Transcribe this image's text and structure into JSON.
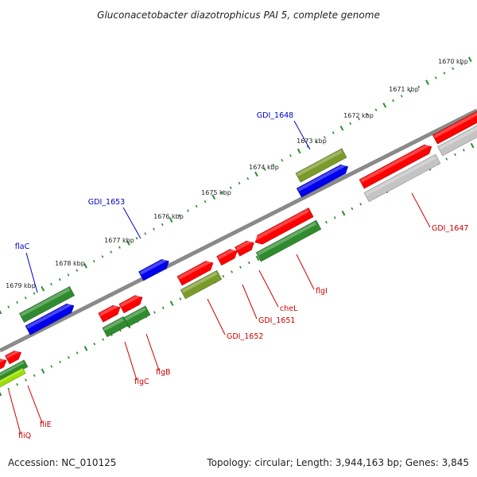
{
  "title": "Gluconacetobacter diazotrophicus PAI 5, complete genome",
  "footer": {
    "accession": "Accession: NC_010125",
    "stats": "Topology: circular; Length: 3,944,163 bp; Genes: 3,845"
  },
  "colors": {
    "backbone": "#8a8a8a",
    "tick": "#2e8b2e",
    "red": "#ff0000",
    "green": "#2e8b2e",
    "blue": "#0000ee",
    "olive": "#7a9a2a",
    "gray": "#c4c4c4",
    "lime": "#9be000",
    "label_blue": "#0000cc",
    "label_red": "#cc0000"
  },
  "kbp_ticks": [
    "1670 kbp",
    "1671 kbp",
    "1672 kbp",
    "1673 kbp",
    "1674 kbp",
    "1675 kbp",
    "1676 kbp",
    "1677 kbp",
    "1678 kbp",
    "1679 kbp"
  ],
  "gene_labels": [
    {
      "text": "GDI_1648",
      "color": "blue"
    },
    {
      "text": "GDI_1653",
      "color": "blue"
    },
    {
      "text": "flaC",
      "color": "blue"
    },
    {
      "text": "GDI_1647",
      "color": "red"
    },
    {
      "text": "flgI",
      "color": "red"
    },
    {
      "text": "cheL",
      "color": "red"
    },
    {
      "text": "GDI_1651",
      "color": "red"
    },
    {
      "text": "GDI_1652",
      "color": "red"
    },
    {
      "text": "flgB",
      "color": "red"
    },
    {
      "text": "flgC",
      "color": "red"
    },
    {
      "text": "fliE",
      "color": "red"
    },
    {
      "text": "fliQ",
      "color": "red"
    }
  ],
  "features": [
    {
      "track": "fwd-inner",
      "color": "red",
      "strand": "+"
    },
    {
      "track": "fwd-inner",
      "color": "red",
      "strand": "+"
    },
    {
      "track": "fwd-inner",
      "color": "red",
      "strand": "-"
    },
    {
      "track": "fwd-inner",
      "color": "red",
      "strand": "+"
    },
    {
      "track": "fwd-inner",
      "color": "red",
      "strand": "+"
    },
    {
      "track": "fwd-inner",
      "color": "red",
      "strand": "+"
    },
    {
      "track": "fwd-inner",
      "color": "red",
      "strand": "+"
    },
    {
      "track": "fwd-inner",
      "color": "red",
      "strand": "+"
    },
    {
      "track": "fwd-inner",
      "color": "red",
      "strand": "+"
    },
    {
      "track": "fwd-inner",
      "color": "red",
      "strand": "+"
    },
    {
      "track": "fwd-inner",
      "color": "red",
      "strand": "+"
    },
    {
      "track": "fwd-outer",
      "color": "gray",
      "strand": "none"
    },
    {
      "track": "fwd-outer",
      "color": "gray",
      "strand": "none"
    },
    {
      "track": "fwd-outer",
      "color": "green",
      "strand": "none"
    },
    {
      "track": "fwd-outer",
      "color": "olive",
      "strand": "none"
    },
    {
      "track": "fwd-outer",
      "color": "green",
      "strand": "none"
    },
    {
      "track": "fwd-outer",
      "color": "green",
      "strand": "none"
    },
    {
      "track": "fwd-outer",
      "color": "green",
      "strand": "none"
    },
    {
      "track": "fwd-outer",
      "color": "lime",
      "strand": "none"
    },
    {
      "track": "rev-outer",
      "color": "olive",
      "strand": "none"
    },
    {
      "track": "rev-outer",
      "color": "green",
      "strand": "none"
    },
    {
      "track": "rev-inner",
      "color": "blue",
      "strand": "+"
    },
    {
      "track": "rev-inner",
      "color": "blue",
      "strand": "+"
    },
    {
      "track": "rev-inner",
      "color": "blue",
      "strand": "+"
    }
  ]
}
